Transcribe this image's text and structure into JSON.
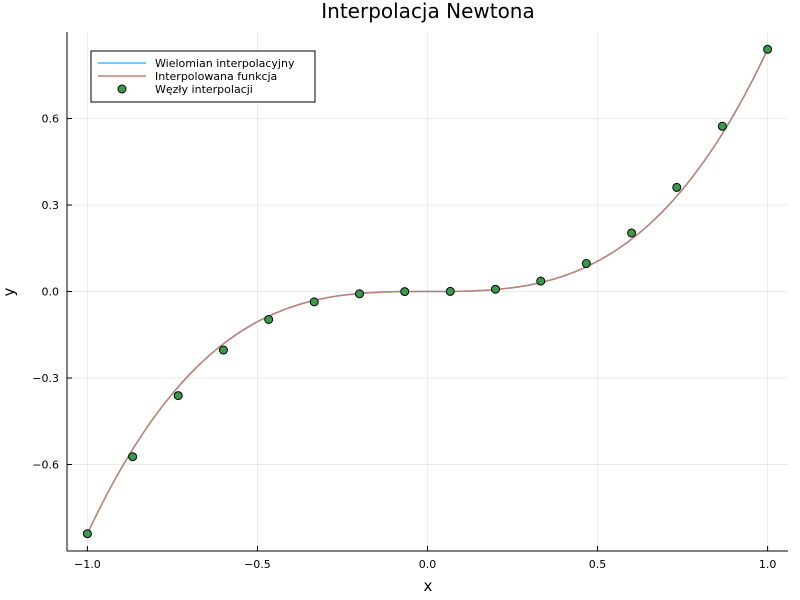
{
  "chart_data": {
    "type": "line",
    "title": "Interpolacja Newtona",
    "xlabel": "x",
    "ylabel": "y",
    "xlim": [
      -1.06,
      1.06
    ],
    "ylim": [
      -0.9,
      0.9
    ],
    "x_ticks": [
      -1.0,
      -0.5,
      0.0,
      0.5,
      1.0
    ],
    "x_tick_labels": [
      "-1.0",
      "-0.5",
      "0.0",
      "0.5",
      "1.0"
    ],
    "y_ticks": [
      -0.6,
      -0.3,
      0.0,
      0.3,
      0.6
    ],
    "y_tick_labels": [
      "-0.6",
      "-0.3",
      "0.0",
      "0.3",
      "0.6"
    ],
    "grid": true,
    "legend_position": "top-left",
    "series": [
      {
        "name": "Wielomian interpolacyjny",
        "kind": "line",
        "color": "#4fb8f0",
        "function": "x^3 * 0.84"
      },
      {
        "name": "Interpolowana funkcja",
        "kind": "line",
        "color": "#c0806f",
        "function": "x^3 * 0.84"
      },
      {
        "name": "Węzły interpolacji",
        "kind": "scatter",
        "color": "#3a9a4a",
        "x": [
          -1.0,
          -0.867,
          -0.733,
          -0.6,
          -0.467,
          -0.333,
          -0.2,
          -0.067,
          0.067,
          0.2,
          0.333,
          0.467,
          0.6,
          0.733,
          0.867,
          1.0
        ],
        "y": [
          -0.84,
          -0.573,
          -0.361,
          -0.203,
          -0.097,
          -0.036,
          -0.008,
          -0.0003,
          0.0003,
          0.008,
          0.036,
          0.097,
          0.203,
          0.361,
          0.573,
          0.84
        ]
      }
    ]
  }
}
